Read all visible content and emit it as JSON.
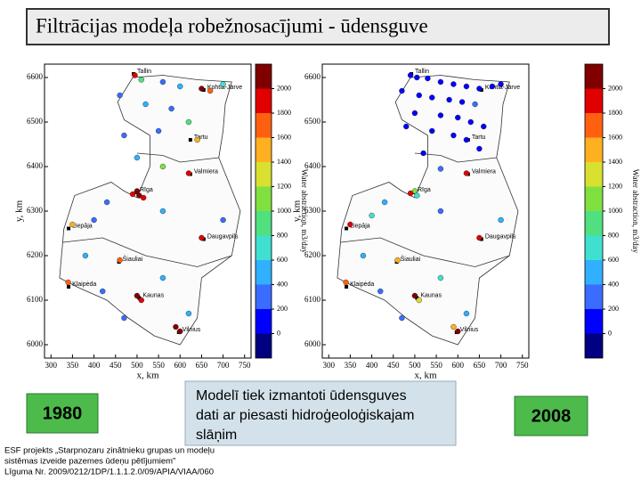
{
  "title": "Filtrācijas modeļa robežnosacījumi - ūdensguve",
  "cities": [
    {
      "name": "Tallin",
      "x": 492,
      "y": 6608
    },
    {
      "name": "Kohtla-Järve",
      "x": 655,
      "y": 6572
    },
    {
      "name": "Tartu",
      "x": 624,
      "y": 6460
    },
    {
      "name": "Rīga",
      "x": 498,
      "y": 6342
    },
    {
      "name": "Valmiera",
      "x": 624,
      "y": 6383
    },
    {
      "name": "Liepāja",
      "x": 341,
      "y": 6261
    },
    {
      "name": "Daugavpils",
      "x": 655,
      "y": 6237
    },
    {
      "name": "Šiauliai",
      "x": 458,
      "y": 6186
    },
    {
      "name": "Klaipėda",
      "x": 341,
      "y": 6130
    },
    {
      "name": "Kaunas",
      "x": 505,
      "y": 6105
    },
    {
      "name": "Vilnius",
      "x": 597,
      "y": 6028
    }
  ],
  "chart_data": [
    {
      "type": "scatter",
      "xlabel": "x, km",
      "ylabel": "y, km",
      "colorbar_label": "Water abstraction, m3/day",
      "xlim": [
        285,
        765
      ],
      "ylim": [
        5970,
        6630
      ],
      "xticks": [
        300,
        350,
        400,
        450,
        500,
        550,
        600,
        650,
        700,
        750
      ],
      "yticks": [
        6000,
        6100,
        6200,
        6300,
        6400,
        6500,
        6600
      ],
      "clim": [
        -200,
        2200
      ],
      "cticks": [
        0,
        200,
        400,
        600,
        800,
        1000,
        1200,
        1400,
        1600,
        1800,
        2000
      ],
      "colors": [
        "#000080",
        "#0000ff",
        "#3a6cff",
        "#30b0ff",
        "#40e0d0",
        "#50e080",
        "#80e040",
        "#d8e030",
        "#ffb020",
        "#ff6010",
        "#e00000",
        "#800000"
      ],
      "x": [
        495,
        510,
        560,
        600,
        650,
        670,
        700,
        460,
        520,
        580,
        620,
        640,
        550,
        470,
        500,
        560,
        620,
        500,
        505,
        490,
        515,
        430,
        350,
        400,
        560,
        650,
        700,
        460,
        380,
        340,
        420,
        500,
        510,
        560,
        600,
        590,
        620,
        470
      ],
      "y": [
        6605,
        6595,
        6590,
        6580,
        6575,
        6570,
        6585,
        6560,
        6540,
        6530,
        6500,
        6460,
        6480,
        6470,
        6420,
        6400,
        6385,
        6345,
        6335,
        6338,
        6330,
        6320,
        6270,
        6280,
        6300,
        6240,
        6280,
        6190,
        6200,
        6140,
        6120,
        6110,
        6100,
        6150,
        6030,
        6040,
        6070,
        6060
      ],
      "values": [
        1800,
        900,
        300,
        500,
        2000,
        1700,
        600,
        200,
        400,
        300,
        800,
        1500,
        200,
        300,
        400,
        1000,
        1900,
        2000,
        2000,
        1800,
        1900,
        300,
        1500,
        200,
        400,
        1900,
        300,
        1600,
        500,
        1700,
        300,
        2000,
        1800,
        400,
        2000,
        2000,
        500,
        300
      ]
    },
    {
      "type": "scatter",
      "xlabel": "x, km",
      "ylabel": "y, km",
      "colorbar_label": "Water abstraction, m3/day",
      "xlim": [
        285,
        765
      ],
      "ylim": [
        5970,
        6630
      ],
      "xticks": [
        300,
        350,
        400,
        450,
        500,
        550,
        600,
        650,
        700,
        750
      ],
      "yticks": [
        6000,
        6100,
        6200,
        6300,
        6400,
        6500,
        6600
      ],
      "clim": [
        -200,
        2200
      ],
      "cticks": [
        0,
        200,
        400,
        600,
        800,
        1000,
        1200,
        1400,
        1600,
        1800,
        2000
      ],
      "colors": [
        "#000080",
        "#0000ff",
        "#3a6cff",
        "#30b0ff",
        "#40e0d0",
        "#50e080",
        "#80e040",
        "#d8e030",
        "#ffb020",
        "#ff6010",
        "#e00000",
        "#800000"
      ],
      "x": [
        490,
        505,
        530,
        560,
        590,
        620,
        650,
        680,
        700,
        470,
        510,
        540,
        580,
        610,
        640,
        500,
        560,
        600,
        630,
        660,
        480,
        540,
        590,
        620,
        650,
        520,
        500,
        505,
        490,
        620,
        560,
        430,
        350,
        400,
        650,
        560,
        700,
        460,
        340,
        380,
        500,
        510,
        420,
        600,
        590,
        620,
        470,
        560
      ],
      "y": [
        6605,
        6600,
        6598,
        6590,
        6585,
        6580,
        6575,
        6580,
        6585,
        6570,
        6560,
        6555,
        6550,
        6545,
        6540,
        6520,
        6515,
        6510,
        6500,
        6490,
        6490,
        6480,
        6470,
        6460,
        6440,
        6430,
        6345,
        6335,
        6340,
        6385,
        6395,
        6320,
        6270,
        6290,
        6240,
        6300,
        6280,
        6190,
        6140,
        6200,
        6110,
        6100,
        6120,
        6030,
        6040,
        6070,
        6060,
        6150
      ],
      "values": [
        100,
        0,
        100,
        0,
        100,
        0,
        100,
        0,
        100,
        0,
        100,
        0,
        100,
        0,
        200,
        100,
        0,
        100,
        0,
        100,
        0,
        100,
        0,
        100,
        0,
        100,
        1000,
        600,
        1900,
        1800,
        300,
        500,
        1800,
        600,
        1900,
        300,
        500,
        1400,
        1700,
        400,
        2000,
        1200,
        300,
        2000,
        1500,
        400,
        200,
        700
      ]
    }
  ],
  "left_year": "1980",
  "right_year": "2008",
  "caption": [
    "Modelī tiek izmantoti ūdensguves",
    "dati ar piesasti hidroģeoloģiskajam",
    "slāņim"
  ],
  "footer": [
    "ESF projekts „Starpnozaru zinātnieku grupas un modeļu",
    "sistēmas izveide pazemes ūdeņu pētījumiem”",
    "Līguma Nr. 2009/0212/1DP/1.1.1.2.0/09/APIA/VIAA/060"
  ]
}
